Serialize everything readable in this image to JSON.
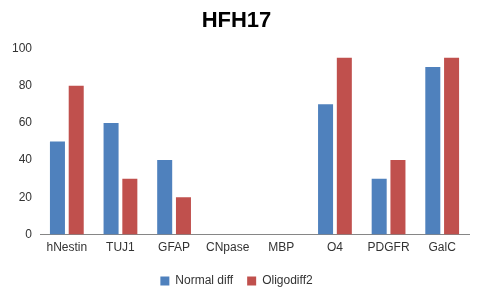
{
  "chart_data": {
    "type": "bar",
    "title": "HFH17",
    "categories": [
      "hNestin",
      "TUJ1",
      "GFAP",
      "CNpase",
      "MBP",
      "O4",
      "PDGFR",
      "GalC"
    ],
    "series": [
      {
        "name": "Normal diff",
        "color": "#4f81bd",
        "values": [
          50,
          60,
          40,
          0,
          0,
          70,
          30,
          90
        ]
      },
      {
        "name": "Oligodiff2",
        "color": "#c0504d",
        "values": [
          80,
          30,
          20,
          0,
          0,
          95,
          40,
          95
        ]
      }
    ],
    "ylim": [
      0,
      100
    ],
    "yticks": [
      0,
      20,
      40,
      60,
      80,
      100
    ],
    "grid": false,
    "legend": "bottom"
  }
}
